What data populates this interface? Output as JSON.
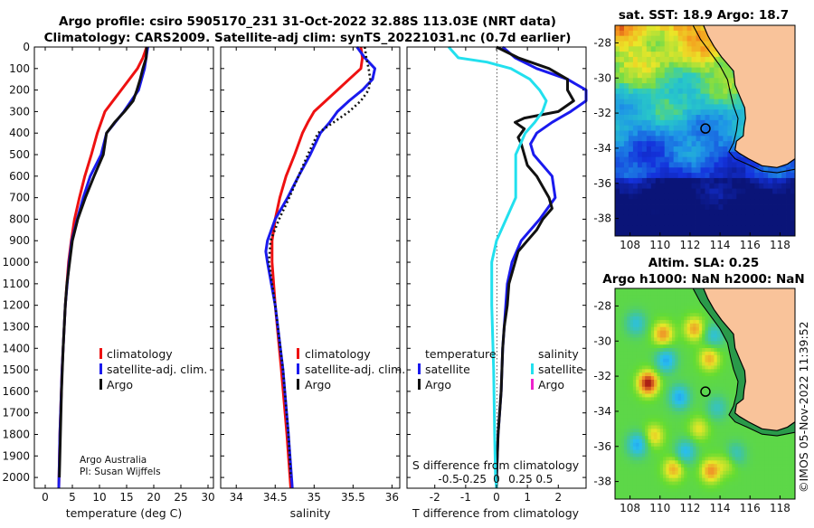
{
  "header": {
    "title_line1": "Argo profile: csiro 5905170_231 31-Oct-2022 32.88S 113.03E (NRT data)",
    "title_line2": "Climatology: CARS2009. Satellite-adj clim: synTS_20221031.nc (0.7d earlier)"
  },
  "colors": {
    "climatology": "#ee1111",
    "satellite_adj": "#1a1aee",
    "argo": "#111111",
    "temp_diff_satellite": "#22e0ee",
    "salinity_argo": "#ee22cc",
    "land": "#f9c39a",
    "frame": "#000000"
  },
  "depth_axis": {
    "ticks": [
      "0",
      "100",
      "200",
      "300",
      "400",
      "500",
      "600",
      "700",
      "800",
      "900",
      "1000",
      "1100",
      "1200",
      "1300",
      "1400",
      "1500",
      "1600",
      "1700",
      "1800",
      "1900",
      "2000"
    ],
    "range": [
      0,
      2050
    ]
  },
  "chart_data": [
    {
      "type": "line",
      "id": "temperature",
      "xlabel": "temperature (deg C)",
      "xlim": [
        -2,
        31
      ],
      "xticks": [
        "0",
        "5",
        "10",
        "15",
        "20",
        "25",
        "30"
      ],
      "ylim": [
        2050,
        0
      ],
      "legend": [
        "climatology",
        "satellite-adj. clim.",
        "Argo"
      ],
      "series": [
        {
          "name": "climatology",
          "color": "#ee1111",
          "depth": [
            0,
            50,
            100,
            200,
            300,
            400,
            500,
            600,
            700,
            800,
            900,
            1000,
            1200,
            1500,
            1800,
            2050
          ],
          "values": [
            18.7,
            18.0,
            17.0,
            14.0,
            11.0,
            9.6,
            8.5,
            7.3,
            6.3,
            5.4,
            4.8,
            4.3,
            3.7,
            3.1,
            2.7,
            2.5
          ]
        },
        {
          "name": "satellite-adj. clim.",
          "color": "#1a1aee",
          "depth": [
            0,
            50,
            100,
            200,
            300,
            400,
            500,
            600,
            700,
            800,
            900,
            1000,
            1200,
            1500,
            1800,
            2050
          ],
          "values": [
            18.9,
            18.6,
            18.3,
            17.2,
            14.5,
            11.3,
            10.3,
            8.3,
            7.0,
            5.9,
            4.9,
            4.4,
            3.7,
            3.1,
            2.7,
            2.5
          ]
        },
        {
          "name": "Argo",
          "color": "#111111",
          "depth": [
            0,
            50,
            100,
            150,
            200,
            250,
            300,
            350,
            400,
            450,
            500,
            600,
            700,
            800,
            900,
            1000,
            1100,
            1200,
            1400,
            1600,
            1800,
            2000
          ],
          "values": [
            18.7,
            18.6,
            18.0,
            17.5,
            16.9,
            16.2,
            14.6,
            12.8,
            11.3,
            11.0,
            10.7,
            9.0,
            7.4,
            6.0,
            5.0,
            4.5,
            4.0,
            3.7,
            3.3,
            3.0,
            2.8,
            2.6
          ]
        }
      ],
      "annotations": [
        "Argo Australia",
        "PI: Susan Wijffels"
      ]
    },
    {
      "type": "line",
      "id": "salinity",
      "xlabel": "salinity",
      "xlim": [
        33.8,
        36.1
      ],
      "xticks": [
        "34",
        "34.5",
        "35",
        "35.5",
        "36"
      ],
      "ylim": [
        2050,
        0
      ],
      "legend": [
        "climatology",
        "satellite-adj. clim.",
        "Argo"
      ],
      "series": [
        {
          "name": "climatology",
          "color": "#ee1111",
          "depth": [
            0,
            50,
            100,
            150,
            200,
            250,
            300,
            350,
            400,
            500,
            600,
            700,
            800,
            900,
            1000,
            1200,
            1500,
            1800,
            2050
          ],
          "values": [
            35.6,
            35.62,
            35.6,
            35.45,
            35.3,
            35.15,
            35.0,
            34.92,
            34.85,
            34.75,
            34.64,
            34.56,
            34.5,
            34.46,
            34.46,
            34.5,
            34.58,
            34.65,
            34.7
          ]
        },
        {
          "name": "satellite-adj. clim.",
          "color": "#1a1aee",
          "depth": [
            0,
            50,
            100,
            150,
            200,
            250,
            300,
            350,
            400,
            500,
            600,
            700,
            800,
            900,
            950,
            1000,
            1200,
            1500,
            1800,
            2050
          ],
          "values": [
            35.55,
            35.65,
            35.78,
            35.75,
            35.62,
            35.45,
            35.3,
            35.2,
            35.08,
            34.95,
            34.8,
            34.66,
            34.5,
            34.4,
            34.38,
            34.4,
            34.5,
            34.6,
            34.67,
            34.72
          ]
        },
        {
          "name": "Argo",
          "color": "#111111",
          "dotted": true,
          "depth": [
            0,
            50,
            100,
            150,
            200,
            250,
            300,
            350,
            400,
            500,
            600,
            700,
            800,
            900,
            1000,
            1200,
            1500,
            1800,
            2000
          ],
          "values": [
            35.65,
            35.67,
            35.7,
            35.72,
            35.7,
            35.6,
            35.45,
            35.25,
            35.05,
            34.92,
            34.8,
            34.68,
            34.55,
            34.44,
            34.42,
            34.5,
            34.6,
            34.67,
            34.7
          ]
        }
      ]
    },
    {
      "type": "line",
      "id": "differences",
      "xlabel": "T difference from climatology",
      "xlabel_top": "S difference from climatology",
      "xlim": [
        -2.9,
        2.9
      ],
      "xticks": [
        "-2",
        "-1",
        "0",
        "1",
        "2"
      ],
      "s_ticks": [
        "-0.5",
        "-0.25",
        "0",
        "0.25",
        "0.5"
      ],
      "ylim": [
        2050,
        0
      ],
      "legend_temperature": [
        "temperature",
        "satellite",
        "Argo"
      ],
      "legend_salinity": [
        "salinity",
        "satellite",
        "Argo"
      ],
      "series": [
        {
          "name": "temperature satellite",
          "color": "#1a1aee",
          "depth": [
            0,
            50,
            100,
            150,
            200,
            250,
            300,
            350,
            400,
            450,
            500,
            600,
            700,
            800,
            900,
            1000,
            1100,
            1200,
            1400,
            1600,
            1800,
            2000,
            2050
          ],
          "values": [
            0.2,
            0.6,
            1.3,
            2.3,
            2.9,
            2.9,
            2.4,
            1.8,
            1.3,
            1.1,
            1.2,
            1.8,
            1.9,
            1.4,
            0.8,
            0.5,
            0.35,
            0.3,
            0.2,
            0.15,
            0.05,
            0.0,
            0.0
          ]
        },
        {
          "name": "temperature Argo",
          "color": "#111111",
          "depth": [
            0,
            50,
            100,
            150,
            200,
            250,
            300,
            330,
            350,
            380,
            420,
            450,
            500,
            550,
            600,
            650,
            700,
            750,
            800,
            850,
            900,
            950,
            1000,
            1050,
            1100,
            1200,
            1300,
            1400,
            1600,
            1800,
            2000,
            2050
          ],
          "values": [
            0.0,
            0.7,
            1.7,
            2.3,
            2.3,
            2.5,
            2.0,
            0.9,
            0.6,
            0.9,
            0.7,
            0.8,
            0.9,
            1.0,
            1.3,
            1.5,
            1.7,
            1.8,
            1.5,
            1.3,
            1.0,
            0.7,
            0.6,
            0.5,
            0.4,
            0.35,
            0.25,
            0.2,
            0.15,
            0.05,
            0.0,
            0.0
          ]
        },
        {
          "name": "salinity satellite",
          "color": "#22e0ee",
          "depth": [
            0,
            50,
            70,
            100,
            150,
            200,
            250,
            300,
            350,
            400,
            450,
            500,
            600,
            700,
            800,
            900,
            1000,
            1200,
            1500,
            1800,
            2000,
            2050
          ],
          "values": [
            -0.5,
            -0.4,
            -0.1,
            0.15,
            0.35,
            0.45,
            0.52,
            0.48,
            0.4,
            0.3,
            0.25,
            0.2,
            0.2,
            0.2,
            0.1,
            0.0,
            -0.05,
            -0.05,
            -0.03,
            -0.02,
            -0.01,
            0.0
          ]
        }
      ]
    },
    {
      "type": "heatmap",
      "id": "sst_map",
      "title": "sat. SST: 18.9 Argo: 18.7",
      "lon_range": [
        107.0,
        119.0
      ],
      "lat_range": [
        -39.0,
        -27.0
      ],
      "xticks": [
        "108",
        "110",
        "112",
        "114",
        "116",
        "118"
      ],
      "yticks": [
        "-28",
        "-30",
        "-32",
        "-34",
        "-36",
        "-38"
      ],
      "marker": {
        "lon": 113.03,
        "lat": -32.88
      }
    },
    {
      "type": "heatmap",
      "id": "sla_map",
      "title_line1": "Altim. SLA: 0.25",
      "title_line2": "Argo h1000: NaN h2000: NaN",
      "lon_range": [
        107.0,
        119.0
      ],
      "lat_range": [
        -39.0,
        -27.0
      ],
      "xticks": [
        "108",
        "110",
        "112",
        "114",
        "116",
        "118"
      ],
      "yticks": [
        "-28",
        "-30",
        "-32",
        "-34",
        "-36",
        "-38"
      ],
      "marker": {
        "lon": 113.03,
        "lat": -32.88
      }
    }
  ],
  "footer": {
    "credit_line1": "Argo Australia",
    "credit_line2": "PI: Susan Wijffels",
    "timestamp": "©IMOS 05-Nov-2022 11:39:52"
  }
}
